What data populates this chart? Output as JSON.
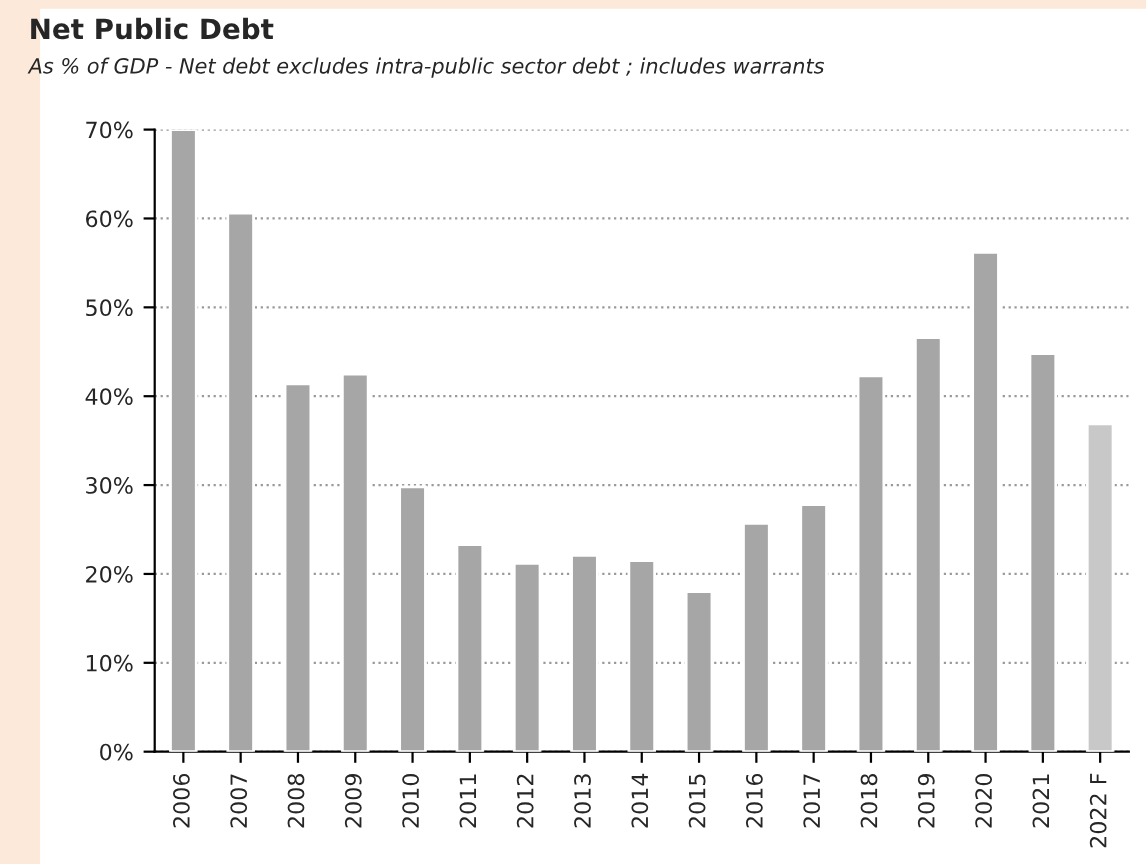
{
  "chart_data": {
    "type": "bar",
    "title": "Net Public Debt",
    "subtitle": "As % of GDP - Net debt excludes intra-public sector debt ; includes warrants",
    "categories": [
      "2006",
      "2007",
      "2008",
      "2009",
      "2010",
      "2011",
      "2012",
      "2013",
      "2014",
      "2015",
      "2016",
      "2017",
      "2018",
      "2019",
      "2020",
      "2021",
      "2022 F"
    ],
    "values": [
      70,
      60.6,
      41.4,
      42.5,
      29.8,
      23.3,
      21.2,
      22.1,
      21.5,
      18.0,
      25.7,
      27.8,
      42.3,
      46.6,
      56.2,
      44.8,
      36.9
    ],
    "colors": [
      "#a6a6a6",
      "#a6a6a6",
      "#a6a6a6",
      "#a6a6a6",
      "#a6a6a6",
      "#a6a6a6",
      "#a6a6a6",
      "#a6a6a6",
      "#a6a6a6",
      "#a6a6a6",
      "#a6a6a6",
      "#a6a6a6",
      "#a6a6a6",
      "#a6a6a6",
      "#a6a6a6",
      "#a6a6a6",
      "#c8c8c8"
    ],
    "ylim": [
      0,
      70
    ],
    "yticks": [
      {
        "value": 0,
        "label": "0%"
      },
      {
        "value": 10,
        "label": "10%"
      },
      {
        "value": 20,
        "label": "20%"
      },
      {
        "value": 30,
        "label": "30%"
      },
      {
        "value": 40,
        "label": "40%"
      },
      {
        "value": 50,
        "label": "50%"
      },
      {
        "value": 60,
        "label": "60%"
      },
      {
        "value": 70,
        "label": "70%"
      }
    ],
    "grid": "y",
    "legend": false
  }
}
